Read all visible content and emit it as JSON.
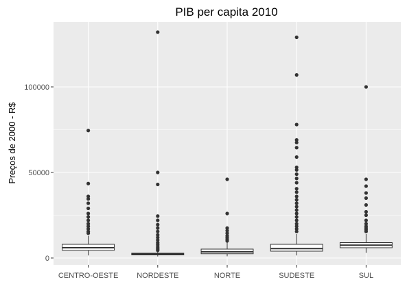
{
  "chart_data": {
    "type": "boxplot",
    "title": "PIB per capita 2010",
    "xlabel": "",
    "ylabel": "Preços de 2000 - R$",
    "ylim": [
      -4000,
      138000
    ],
    "yticks": [
      0,
      50000,
      100000
    ],
    "ytick_labels": [
      "0",
      "50000",
      "100000"
    ],
    "grid": true,
    "colors": {
      "panel": "#ebebeb",
      "grid_major": "#ffffff",
      "box_fill": "#ffffff",
      "box_line": "#333333",
      "outlier": "#333333",
      "axis_text": "#4d4d4d"
    },
    "categories": [
      "CENTRO-OESTE",
      "NORDESTE",
      "NORTE",
      "SUDESTE",
      "SUL"
    ],
    "boxes": [
      {
        "category": "CENTRO-OESTE",
        "q1": 4500,
        "median": 6000,
        "q3": 8000,
        "whisker_low": 1500,
        "whisker_high": 13000,
        "outliers": [
          74500,
          43500,
          36000,
          34500,
          32000,
          29000,
          26000,
          24000,
          22000,
          20000,
          18500,
          17000,
          15500,
          14500
        ]
      },
      {
        "category": "NORDESTE",
        "q1": 1800,
        "median": 2200,
        "q3": 2800,
        "whisker_low": 900,
        "whisker_high": 4000,
        "outliers": [
          132000,
          50000,
          43000,
          24500,
          22000,
          19500,
          17500,
          15500,
          13500,
          12000,
          10500,
          9000,
          8000,
          7000,
          6000,
          5200,
          4500
        ]
      },
      {
        "category": "NORTE",
        "q1": 2500,
        "median": 3600,
        "q3": 5200,
        "whisker_low": 1000,
        "whisker_high": 9000,
        "outliers": [
          46000,
          26000,
          17500,
          16000,
          14500,
          13000,
          12000,
          11000,
          10000
        ]
      },
      {
        "category": "SUDESTE",
        "q1": 4000,
        "median": 5500,
        "q3": 8000,
        "whisker_low": 1500,
        "whisker_high": 14000,
        "outliers": [
          129000,
          107000,
          78000,
          69000,
          67500,
          64500,
          59000,
          53000,
          51500,
          49000,
          46500,
          44000,
          40500,
          38500,
          36000,
          34000,
          32000,
          30000,
          28000,
          26000,
          24000,
          22000,
          20000,
          18500,
          17000,
          15500
        ]
      },
      {
        "category": "SUL",
        "q1": 6000,
        "median": 7500,
        "q3": 9000,
        "whisker_low": 3000,
        "whisker_high": 14000,
        "outliers": [
          100000,
          46000,
          42000,
          38000,
          35000,
          31000,
          27000,
          25000,
          22000,
          20000,
          18500,
          17500,
          16500,
          15500
        ]
      }
    ]
  }
}
